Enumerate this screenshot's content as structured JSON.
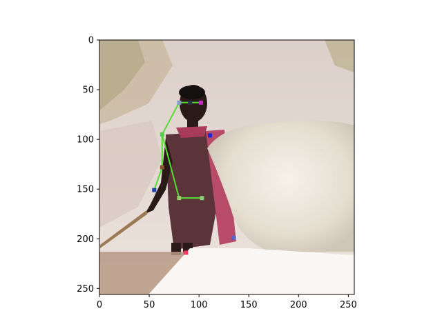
{
  "chart_data": {
    "type": "image_with_pose_overlay",
    "title": "",
    "xlabel": "",
    "ylabel": "",
    "xlim": [
      0,
      256
    ],
    "ylim": [
      256,
      0
    ],
    "x_ticks": [
      0,
      50,
      100,
      150,
      200,
      250
    ],
    "y_ticks": [
      0,
      50,
      100,
      150,
      200,
      250
    ],
    "grid": false,
    "skeleton_color": "#55dd33",
    "keypoints": [
      {
        "x": 80,
        "y": 63,
        "color": "#8899cc"
      },
      {
        "x": 91,
        "y": 63,
        "color": "#223344"
      },
      {
        "x": 102,
        "y": 63,
        "color": "#bb33bb"
      },
      {
        "x": 63,
        "y": 95,
        "color": "#55cc55"
      },
      {
        "x": 111,
        "y": 96,
        "color": "#2222cc"
      },
      {
        "x": 63,
        "y": 128,
        "color": "#885533"
      },
      {
        "x": 55,
        "y": 151,
        "color": "#2244bb"
      },
      {
        "x": 80,
        "y": 159,
        "color": "#99cc66"
      },
      {
        "x": 103,
        "y": 159,
        "color": "#88cc77"
      },
      {
        "x": 135,
        "y": 199,
        "color": "#5566cc"
      },
      {
        "x": 87,
        "y": 214,
        "color": "#ff3366"
      }
    ],
    "skeleton": [
      [
        0,
        1
      ],
      [
        1,
        2
      ],
      [
        0,
        3
      ],
      [
        3,
        5
      ],
      [
        5,
        6
      ],
      [
        3,
        7
      ],
      [
        7,
        8
      ]
    ]
  }
}
